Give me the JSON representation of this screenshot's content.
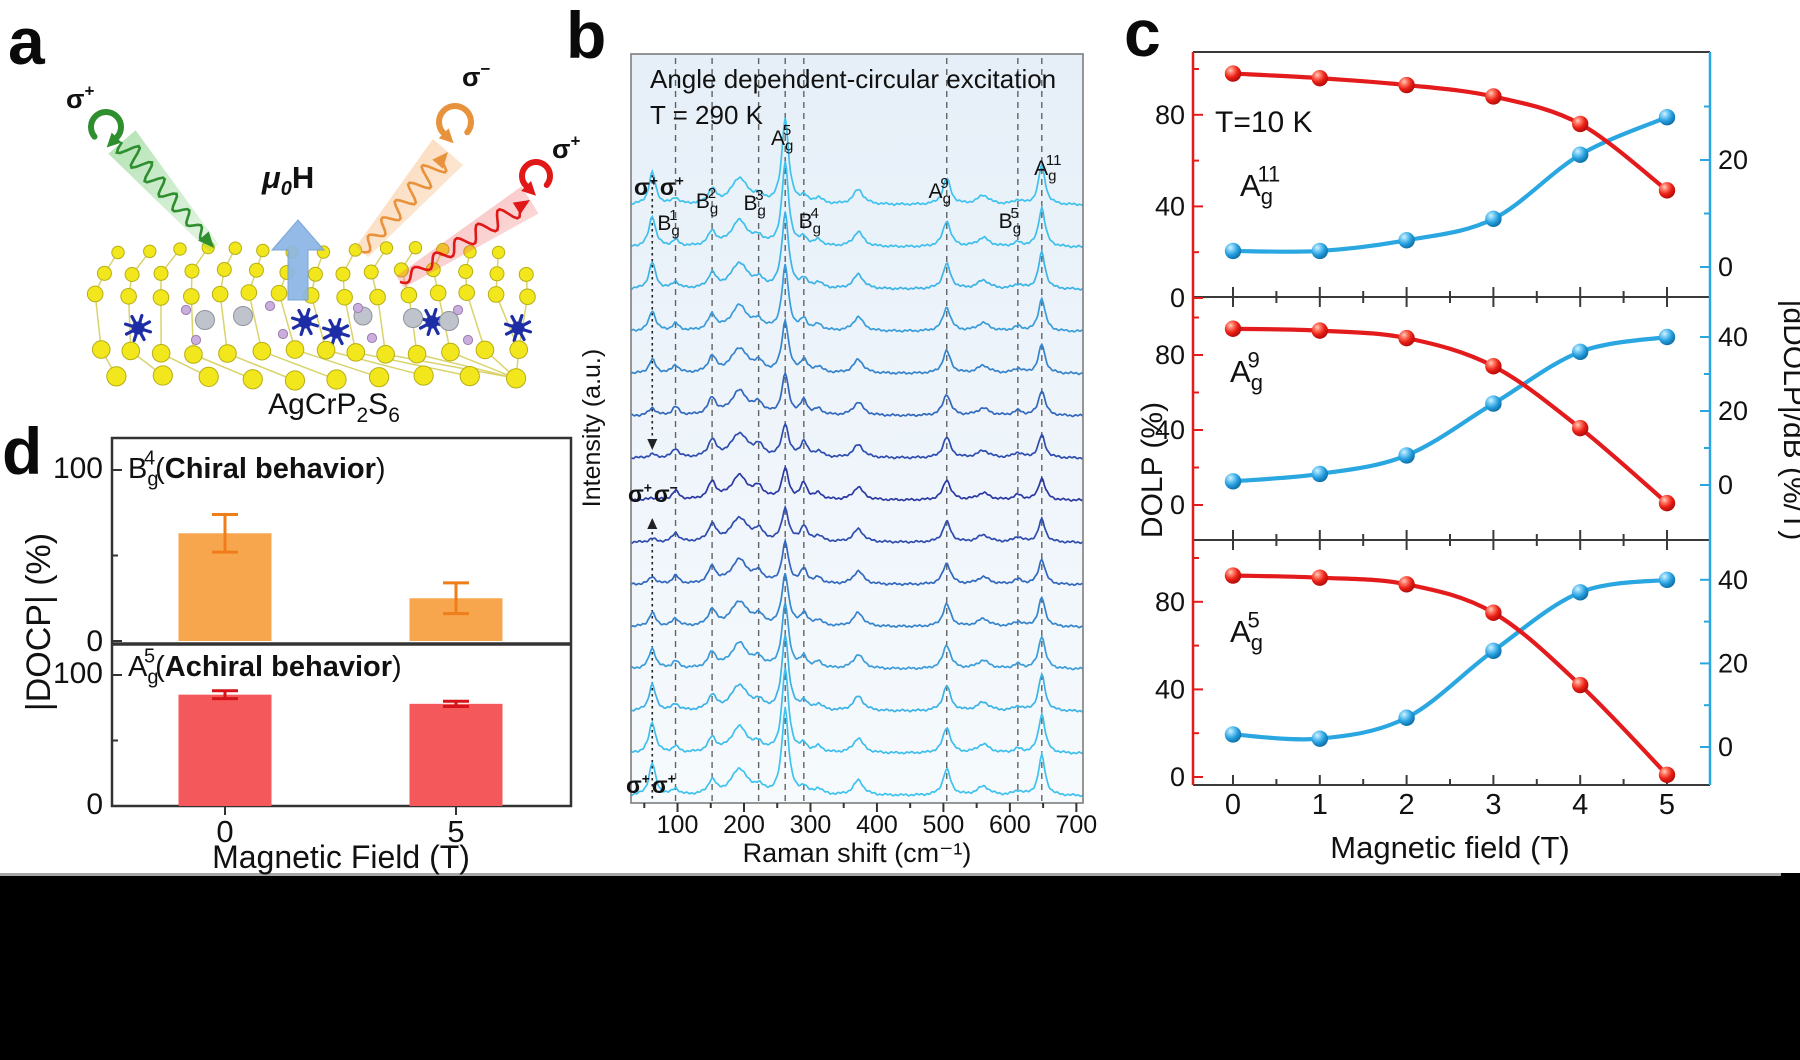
{
  "figure": {
    "panel_labels": [
      "a",
      "b",
      "c",
      "d"
    ],
    "bottom_band_color": "#000000",
    "divider_color": "#a6a6a6"
  },
  "panel_a": {
    "incident_label": {
      "base": "σ",
      "sup": "+"
    },
    "reflected_label_1": {
      "base": "σ",
      "sup": "−"
    },
    "reflected_label_2": {
      "base": "σ",
      "sup": "+"
    },
    "field_label": {
      "base": "μ",
      "sub": "0",
      "tail": "H"
    },
    "material_label": {
      "head": "AgCrP",
      "sub1": "2",
      "mid": "S",
      "sub2": "6"
    },
    "colors": {
      "incident_beam": "#2f8f2f",
      "reflected_beam_1": "#e8923c",
      "reflected_beam_2": "#e01818",
      "field_arrow": "#8cb6e6",
      "atom_yellow": "#f2e71c",
      "atom_navy": "#1c2da6",
      "atom_gray": "#bfc3cb",
      "atom_purple": "#c9aede"
    }
  },
  "chart_data": [
    {
      "panel": "b",
      "type": "line",
      "title": "Angle dependent-circular excitation",
      "subtitle": "T = 290 K",
      "xlabel": "Raman shift (cm⁻¹)",
      "ylabel": "Intensity (a.u.)",
      "xlim": [
        30,
        710
      ],
      "x_ticks": [
        100,
        200,
        300,
        400,
        500,
        600,
        700
      ],
      "n_spectra": 15,
      "polarization_labels": {
        "top": [
          [
            "σ",
            "+"
          ],
          [
            "σ",
            "+"
          ]
        ],
        "middle": [
          [
            "σ",
            "+"
          ],
          [
            "σ",
            "−"
          ]
        ],
        "bottom": [
          [
            "σ",
            "+"
          ],
          [
            "σ",
            "+"
          ]
        ]
      },
      "line_colors": {
        "edge": "#3fc3ee",
        "middle": "#2b3aa4"
      },
      "background": [
        "#e6eff8",
        "#f6fafd"
      ],
      "peaks": [
        {
          "raman_shift": 62,
          "width": 6,
          "amp_sigma_pp": 32,
          "amp_sigma_pm": 2
        },
        {
          "raman_shift": 97,
          "width": 6,
          "amp_sigma_pp": 6,
          "amp_sigma_pm": 9,
          "mode": {
            "base": "B",
            "sub": "g",
            "sup": "1"
          }
        },
        {
          "raman_shift": 152,
          "width": 7,
          "amp_sigma_pp": 14,
          "amp_sigma_pm": 17,
          "mode": {
            "base": "B",
            "sub": "g",
            "sup": "2"
          }
        },
        {
          "raman_shift": 193,
          "width": 15,
          "amp_sigma_pp": 26,
          "amp_sigma_pm": 24
        },
        {
          "raman_shift": 222,
          "width": 8,
          "amp_sigma_pp": 7,
          "amp_sigma_pm": 11,
          "mode": {
            "base": "B",
            "sub": "g",
            "sup": "3"
          }
        },
        {
          "raman_shift": 262,
          "width": 6,
          "amp_sigma_pp": 86,
          "amp_sigma_pm": 30,
          "mode": {
            "base": "A",
            "sub": "g",
            "sup": "5"
          }
        },
        {
          "raman_shift": 290,
          "width": 6,
          "amp_sigma_pp": 7,
          "amp_sigma_pm": 16,
          "mode": {
            "base": "B",
            "sub": "g",
            "sup": "4"
          }
        },
        {
          "raman_shift": 312,
          "width": 7,
          "amp_sigma_pp": 6,
          "amp_sigma_pm": 6
        },
        {
          "raman_shift": 372,
          "width": 9,
          "amp_sigma_pp": 15,
          "amp_sigma_pm": 13
        },
        {
          "raman_shift": 505,
          "width": 7,
          "amp_sigma_pp": 26,
          "amp_sigma_pm": 20,
          "mode": {
            "base": "A",
            "sub": "g",
            "sup": "9"
          }
        },
        {
          "raman_shift": 560,
          "width": 11,
          "amp_sigma_pp": 9,
          "amp_sigma_pm": 7
        },
        {
          "raman_shift": 612,
          "width": 8,
          "amp_sigma_pp": 4,
          "amp_sigma_pm": 5,
          "mode": {
            "base": "B",
            "sub": "g",
            "sup": "5"
          }
        },
        {
          "raman_shift": 648,
          "width": 6,
          "amp_sigma_pp": 40,
          "amp_sigma_pm": 22,
          "mode": {
            "base": "A",
            "sub": "g",
            "sup": "11"
          }
        }
      ],
      "dashed_guides": [
        97,
        152,
        222,
        262,
        290,
        505,
        612,
        648
      ],
      "dotted_guide": 62
    },
    {
      "panel": "c",
      "type": "line",
      "temperature": "T=10 K",
      "xlabel": "Magnetic field (T)",
      "ylabel_left": "DOLP (%)",
      "ylabel_right": "|dDOLP|/dB (%/T)",
      "x": [
        0,
        1,
        2,
        3,
        4,
        5
      ],
      "left_ticks": [
        0,
        40,
        80
      ],
      "right_ticks": [
        0,
        20,
        40
      ],
      "colors": {
        "left": "#e31b1c",
        "right": "#2aa7e1"
      },
      "subpanels": [
        {
          "mode": {
            "base": "A",
            "sub": "g",
            "sup": "11"
          },
          "dolp": [
            98,
            96,
            93,
            88,
            76,
            47
          ],
          "ddolp_db": [
            3,
            3,
            5,
            9,
            21,
            28
          ]
        },
        {
          "mode": {
            "base": "A",
            "sub": "g",
            "sup": "9"
          },
          "dolp": [
            94,
            93,
            89,
            74,
            41,
            1
          ],
          "ddolp_db": [
            1,
            3,
            8,
            22,
            36,
            40
          ]
        },
        {
          "mode": {
            "base": "A",
            "sub": "g",
            "sup": "5"
          },
          "dolp": [
            92,
            91,
            88,
            75,
            42,
            1
          ],
          "ddolp_db": [
            3,
            2,
            7,
            23,
            37,
            40
          ]
        }
      ]
    },
    {
      "panel": "d",
      "type": "bar",
      "xlabel": "Magnetic Field (T)",
      "ylabel": "|DOCP| (%)",
      "categories": [
        "0",
        "5"
      ],
      "yticks": [
        0,
        100
      ],
      "subpanels": [
        {
          "mode": {
            "base": "B",
            "sub": "g",
            "sup": "4"
          },
          "behavior": "Chiral behavior",
          "bar_color": "#F8A64E",
          "error_color": "#EF7D1A",
          "values": [
            63,
            25
          ],
          "errors": [
            11,
            9
          ]
        },
        {
          "mode": {
            "base": "A",
            "sub": "g",
            "sup": "5"
          },
          "behavior": "Achiral behavior",
          "bar_color": "#F4585A",
          "error_color": "#D41418",
          "values": [
            85,
            78
          ],
          "errors": [
            3,
            2
          ]
        }
      ]
    }
  ]
}
